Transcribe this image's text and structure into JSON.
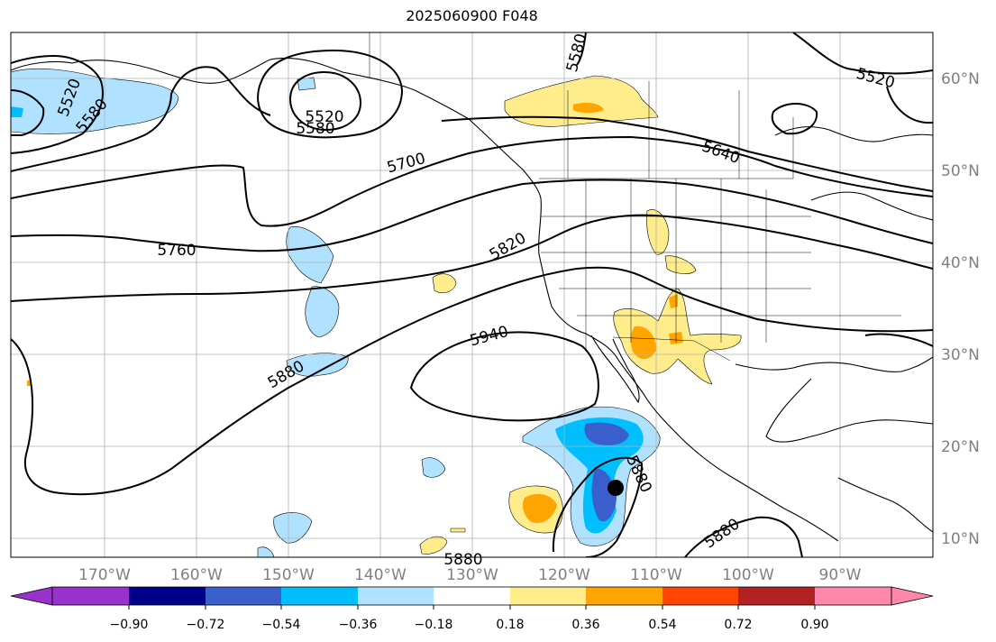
{
  "title": "2025060900 F048",
  "colors": {
    "anomaly_bins": [
      "#9932cc",
      "#00008b",
      "#3a5fcd",
      "#00bfff",
      "#b0e2ff",
      "#ffffff",
      "#ffec8b",
      "#ffa500",
      "#ff4500",
      "#b22222",
      "#ff88aa"
    ],
    "contour_line": "#000000",
    "coast_line": "#000000",
    "grid_line": "#b0b0b0",
    "tick_label": "#808080"
  },
  "axes": {
    "lon_ticks": [
      "170°W",
      "160°W",
      "150°W",
      "140°W",
      "130°W",
      "120°W",
      "110°W",
      "100°W",
      "90°W"
    ],
    "lat_ticks": [
      "60°N",
      "50°N",
      "40°N",
      "30°N",
      "20°N",
      "10°N"
    ],
    "lon_range": [
      -180,
      -80
    ],
    "lat_range": [
      8,
      65
    ]
  },
  "contour_labels": [
    "5520",
    "5580",
    "5520",
    "5580",
    "5580",
    "5520",
    "5640",
    "5700",
    "5760",
    "5820",
    "5880",
    "5940",
    "5880",
    "5880",
    "5880"
  ],
  "colorbar": {
    "ticks": [
      "−0.90",
      "−0.72",
      "−0.54",
      "−0.36",
      "−0.18",
      "0.18",
      "0.36",
      "0.54",
      "0.72",
      "0.90"
    ],
    "extend": "both"
  }
}
